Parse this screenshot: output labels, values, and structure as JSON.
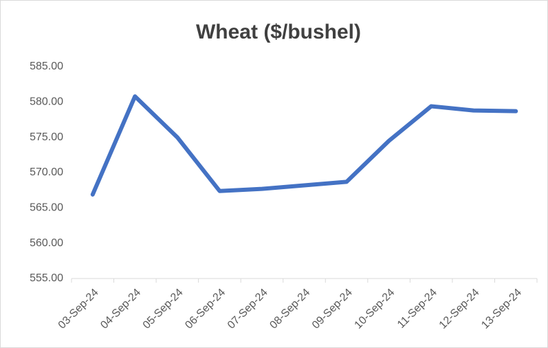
{
  "chart_data": {
    "type": "line",
    "title": "Wheat ($/bushel)",
    "categories": [
      "03-Sep-24",
      "04-Sep-24",
      "05-Sep-24",
      "06-Sep-24",
      "07-Sep-24",
      "08-Sep-24",
      "09-Sep-24",
      "10-Sep-24",
      "11-Sep-24",
      "12-Sep-24",
      "13-Sep-24"
    ],
    "series": [
      {
        "name": "Wheat",
        "color": "#4472c4",
        "values": [
          566.9,
          580.8,
          575.0,
          567.4,
          567.7,
          568.2,
          568.7,
          574.5,
          579.4,
          578.8,
          578.7
        ]
      }
    ],
    "ylim": [
      555,
      585
    ],
    "yticks": [
      {
        "value": 555,
        "label": "555.00"
      },
      {
        "value": 560,
        "label": "560.00"
      },
      {
        "value": 565,
        "label": "565.00"
      },
      {
        "value": 570,
        "label": "570.00"
      },
      {
        "value": 575,
        "label": "575.00"
      },
      {
        "value": 580,
        "label": "580.00"
      },
      {
        "value": 585,
        "label": "585.00"
      }
    ],
    "grid": false
  }
}
